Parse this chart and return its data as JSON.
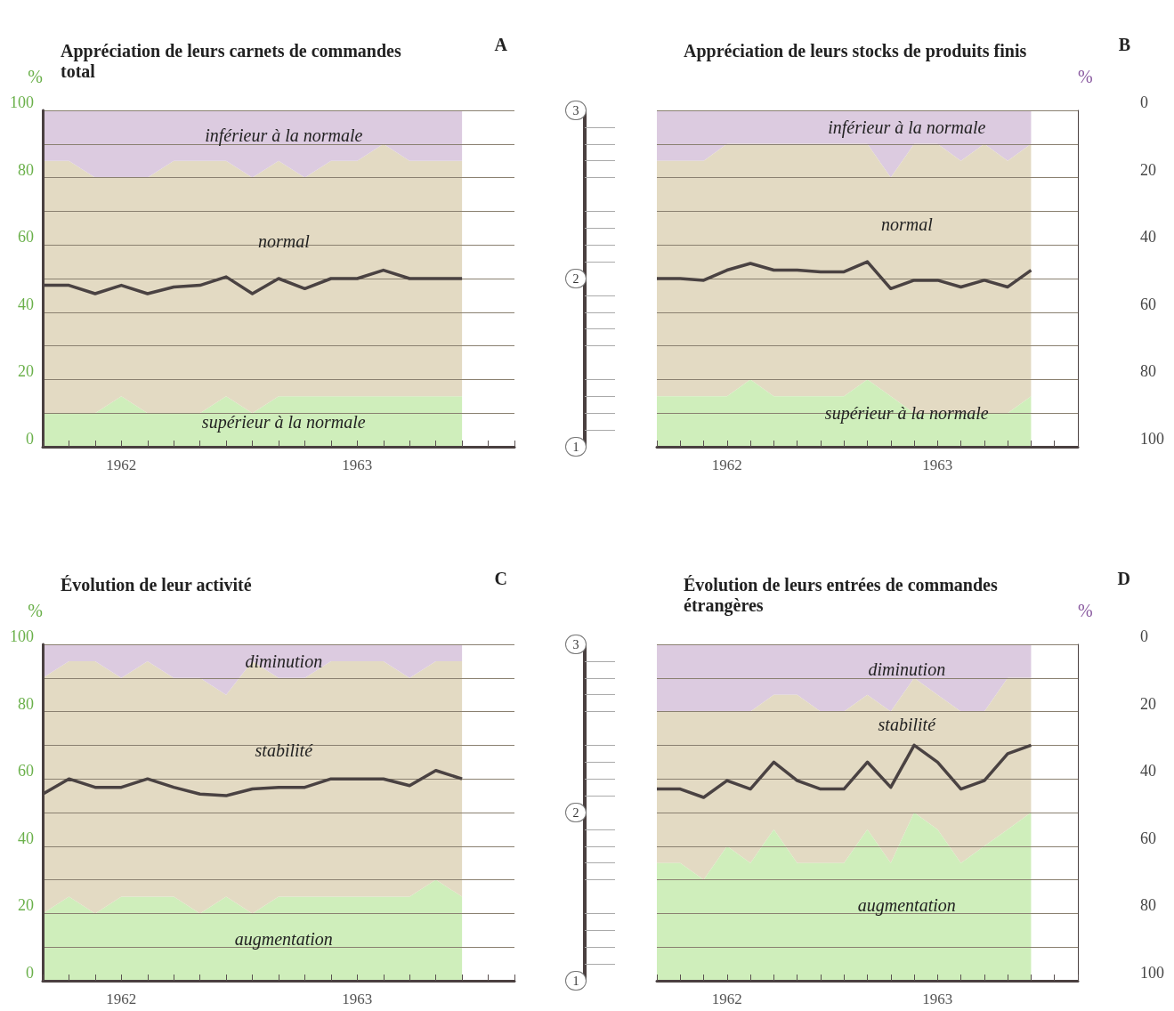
{
  "chart_data": [
    {
      "type": "area",
      "title": "Appréciation de leurs carnets de commandes total",
      "ylabel": "%",
      "annotations": [
        "A"
      ],
      "stacked": true,
      "grid": "y",
      "legend": false,
      "categories": [
        null,
        null,
        null,
        "1962",
        null,
        null,
        null,
        null,
        null,
        null,
        null,
        null,
        "1963",
        null,
        null,
        null,
        null,
        null,
        null
      ],
      "ylim": [
        0,
        100
      ],
      "yticks": [
        0,
        {
          "value": 10,
          "label": null
        },
        20,
        {
          "value": 30,
          "label": null
        },
        40,
        {
          "value": 50,
          "label": null
        },
        60,
        {
          "value": 70,
          "label": null
        },
        80,
        {
          "value": 90,
          "label": null
        },
        100
      ],
      "y2lim": [
        1,
        3
      ],
      "y2ticks": [
        1,
        2,
        3
      ],
      "series": [
        {
          "name": "supérieur à la normale",
          "color": "#cfeebb",
          "values": [
            10,
            10,
            10,
            15,
            10,
            10,
            10,
            15,
            10,
            15,
            15,
            15,
            15,
            15,
            15,
            15,
            15,
            null,
            null
          ]
        },
        {
          "name": "normal",
          "color": "#e3dac3",
          "values": [
            75,
            75,
            70,
            65,
            70,
            75,
            75,
            70,
            70,
            70,
            65,
            70,
            70,
            75,
            70,
            70,
            70,
            null,
            null
          ]
        },
        {
          "name": "inférieur à la normale",
          "color": "#dccbe0",
          "values": [
            15,
            15,
            20,
            20,
            20,
            15,
            15,
            15,
            20,
            15,
            20,
            15,
            15,
            10,
            15,
            15,
            15,
            null,
            null
          ]
        },
        {
          "type": "line",
          "axis": "y2",
          "color": "#4a4242",
          "values": [
            1.96,
            1.96,
            1.91,
            1.96,
            1.91,
            1.95,
            1.96,
            2.01,
            1.91,
            2.0,
            1.94,
            2.0,
            2.0,
            2.05,
            2.0,
            2.0,
            2.0,
            null,
            null
          ]
        }
      ]
    },
    {
      "type": "area",
      "title": "Appréciation de leurs stocks de produits finis",
      "ylabel": "%",
      "annotations": [
        "B"
      ],
      "stacked": true,
      "grid": "y",
      "legend": false,
      "tick_labels": "xy",
      "categories": [
        null,
        null,
        null,
        "1962",
        null,
        null,
        null,
        null,
        null,
        null,
        null,
        null,
        "1963",
        null,
        null,
        null,
        null,
        null,
        null
      ],
      "ylim": [
        100,
        0
      ],
      "yticks": [
        0,
        {
          "value": 10,
          "label": null
        },
        20,
        {
          "value": 30,
          "label": null
        },
        40,
        {
          "value": 50,
          "label": null
        },
        60,
        {
          "value": 70,
          "label": null
        },
        80,
        {
          "value": 90,
          "label": null
        },
        100
      ],
      "y2lim": [
        1,
        3
      ],
      "series": [
        {
          "name": "inférieur à la normale",
          "color": "#dccbe0",
          "values": [
            15,
            15,
            15,
            10,
            10,
            10,
            10,
            10,
            10,
            10,
            20,
            10,
            10,
            15,
            10,
            15,
            10,
            null,
            null
          ]
        },
        {
          "name": "normal",
          "color": "#e3dac3",
          "values": [
            70,
            70,
            70,
            75,
            70,
            75,
            75,
            75,
            75,
            70,
            65,
            80,
            80,
            75,
            80,
            75,
            75,
            null,
            null
          ]
        },
        {
          "name": "supérieur à la normale",
          "color": "#cfeebb",
          "values": [
            15,
            15,
            15,
            15,
            20,
            15,
            15,
            15,
            15,
            20,
            15,
            10,
            10,
            10,
            10,
            10,
            15,
            null,
            null
          ]
        },
        {
          "type": "line",
          "axis": "y2",
          "color": "#4a4242",
          "values": [
            2.0,
            2.0,
            1.99,
            2.05,
            2.09,
            2.05,
            2.05,
            2.04,
            2.04,
            2.1,
            1.94,
            1.99,
            1.99,
            1.95,
            1.99,
            1.95,
            2.05,
            null,
            null
          ]
        }
      ]
    },
    {
      "type": "area",
      "title": "Évolution de leur activité",
      "ylabel": "%",
      "annotations": [
        "C"
      ],
      "stacked": true,
      "grid": "y",
      "legend": false,
      "categories": [
        null,
        null,
        null,
        "1962",
        null,
        null,
        null,
        null,
        null,
        null,
        null,
        null,
        "1963",
        null,
        null,
        null,
        null,
        null,
        null
      ],
      "ylim": [
        0,
        100
      ],
      "yticks": [
        0,
        {
          "value": 10,
          "label": null
        },
        20,
        {
          "value": 30,
          "label": null
        },
        40,
        {
          "value": 50,
          "label": null
        },
        60,
        {
          "value": 70,
          "label": null
        },
        80,
        {
          "value": 90,
          "label": null
        },
        100
      ],
      "y2lim": [
        1,
        3
      ],
      "y2ticks": [
        1,
        2,
        3
      ],
      "series": [
        {
          "name": "augmentation",
          "color": "#cfeebb",
          "values": [
            20,
            25,
            20,
            25,
            25,
            25,
            20,
            25,
            20,
            25,
            25,
            25,
            25,
            25,
            25,
            30,
            25,
            null,
            null
          ]
        },
        {
          "name": "stabilité",
          "color": "#e3dac3",
          "values": [
            70,
            70,
            75,
            65,
            70,
            65,
            70,
            60,
            75,
            65,
            65,
            70,
            70,
            70,
            65,
            65,
            70,
            null,
            null
          ]
        },
        {
          "name": "diminution",
          "color": "#dccbe0",
          "values": [
            10,
            5,
            5,
            10,
            5,
            10,
            10,
            15,
            5,
            10,
            10,
            5,
            5,
            5,
            10,
            5,
            5,
            null,
            null
          ]
        },
        {
          "type": "line",
          "axis": "y2",
          "color": "#4a4242",
          "values": [
            2.11,
            2.2,
            2.15,
            2.15,
            2.2,
            2.15,
            2.11,
            2.1,
            2.14,
            2.15,
            2.15,
            2.2,
            2.2,
            2.2,
            2.16,
            2.25,
            2.2,
            null,
            null
          ]
        }
      ]
    },
    {
      "type": "area",
      "title": "Évolution de leurs entrées de commandes étrangères",
      "ylabel": "%",
      "annotations": [
        "D"
      ],
      "stacked": true,
      "grid": "y",
      "legend": false,
      "tick_labels": "xy",
      "categories": [
        null,
        null,
        null,
        "1962",
        null,
        null,
        null,
        null,
        null,
        null,
        null,
        null,
        "1963",
        null,
        null,
        null,
        null,
        null,
        null
      ],
      "ylim": [
        100,
        0
      ],
      "yticks": [
        0,
        {
          "value": 10,
          "label": null
        },
        20,
        {
          "value": 30,
          "label": null
        },
        40,
        {
          "value": 50,
          "label": null
        },
        60,
        {
          "value": 70,
          "label": null
        },
        80,
        {
          "value": 90,
          "label": null
        },
        100
      ],
      "y2lim": [
        1,
        3
      ],
      "series": [
        {
          "name": "diminution",
          "color": "#dccbe0",
          "values": [
            20,
            20,
            20,
            20,
            20,
            15,
            15,
            20,
            20,
            15,
            20,
            10,
            15,
            20,
            20,
            10,
            10,
            null,
            null
          ]
        },
        {
          "name": "stabilité",
          "color": "#e3dac3",
          "values": [
            45,
            45,
            50,
            40,
            45,
            40,
            50,
            45,
            45,
            40,
            45,
            40,
            40,
            45,
            40,
            45,
            40,
            null,
            null
          ]
        },
        {
          "name": "augmentation",
          "color": "#cfeebb",
          "values": [
            35,
            35,
            30,
            40,
            35,
            45,
            35,
            35,
            35,
            45,
            35,
            50,
            45,
            35,
            40,
            45,
            50,
            null,
            null
          ]
        },
        {
          "type": "line",
          "axis": "y2",
          "color": "#4a4242",
          "values": [
            2.14,
            2.14,
            2.09,
            2.19,
            2.14,
            2.3,
            2.19,
            2.14,
            2.14,
            2.3,
            2.15,
            2.4,
            2.3,
            2.14,
            2.19,
            2.35,
            2.4,
            null,
            null
          ]
        }
      ]
    }
  ]
}
